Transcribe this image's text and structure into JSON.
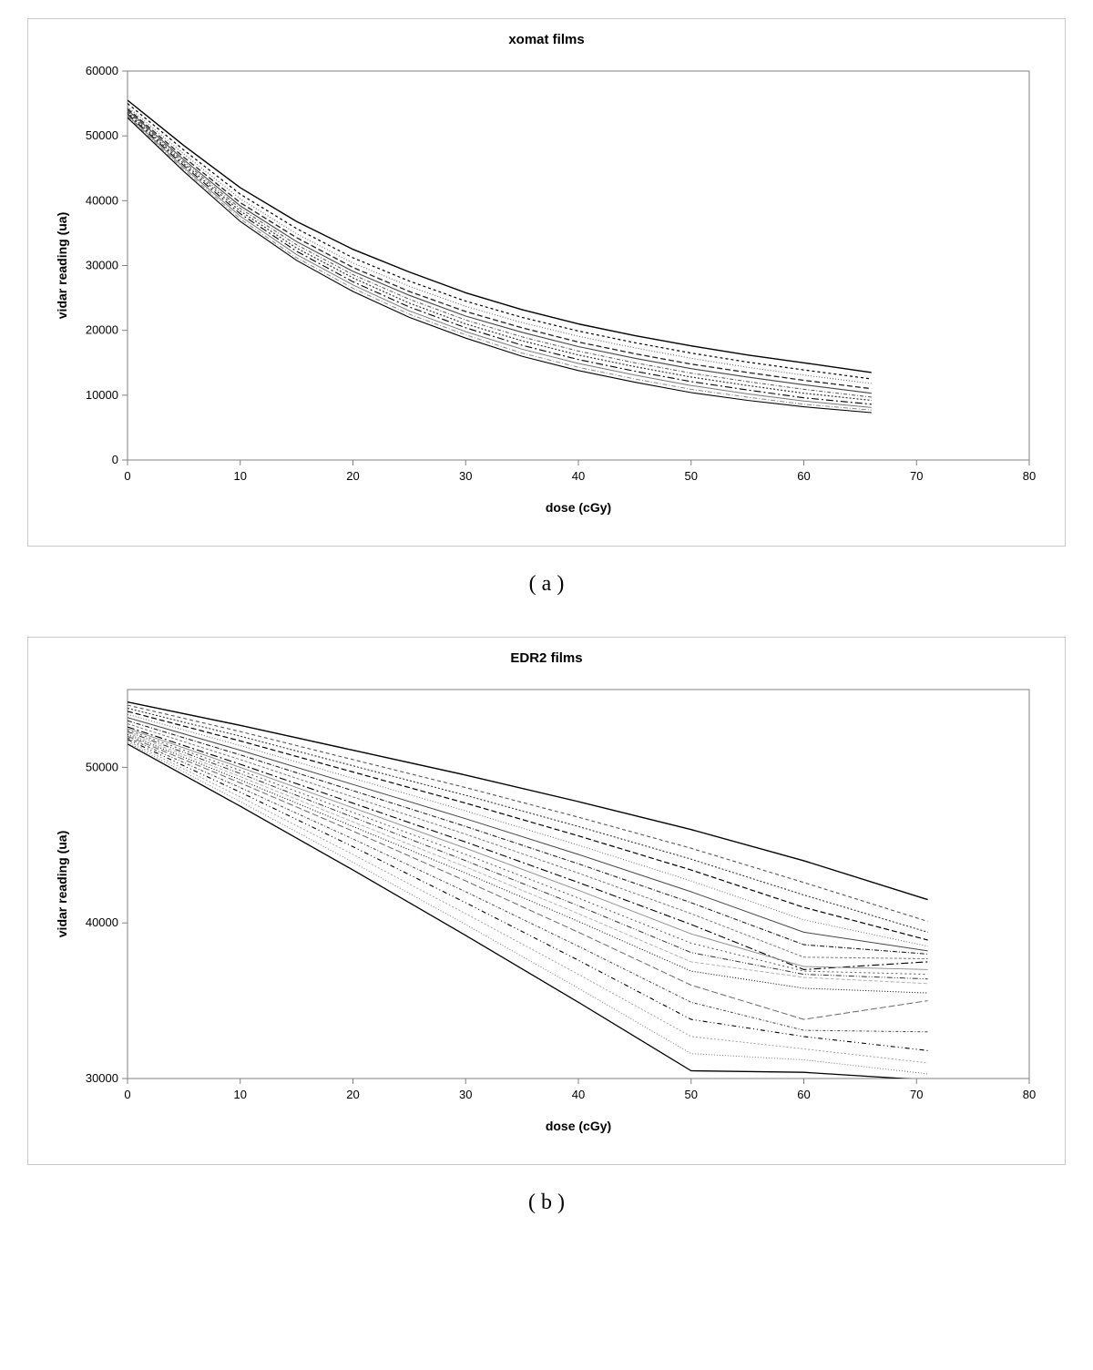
{
  "figure_a": {
    "type": "line",
    "title": "xomat films",
    "xlabel": "dose (cGy)",
    "ylabel": "vidar reading (ua)",
    "title_fontsize": 15,
    "label_fontsize": 14,
    "tick_fontsize": 13,
    "xlim": [
      0,
      80
    ],
    "ylim": [
      0,
      60000
    ],
    "xticks": [
      0,
      10,
      20,
      30,
      40,
      50,
      60,
      70,
      80
    ],
    "yticks": [
      0,
      10000,
      20000,
      30000,
      40000,
      50000,
      60000
    ],
    "background_color": "#ffffff",
    "border_color": "#808080",
    "card_border_color": "#c8c8c8",
    "x_data": [
      0,
      5,
      10,
      15,
      20,
      25,
      30,
      35,
      40,
      45,
      50,
      55,
      60,
      66
    ],
    "series": [
      {
        "color": "#000000",
        "dash": "none",
        "width": 1.4,
        "y": [
          55500,
          48500,
          42000,
          36800,
          32500,
          29000,
          25800,
          23200,
          21000,
          19200,
          17600,
          16200,
          15000,
          13500
        ]
      },
      {
        "color": "#000000",
        "dash": "3,3",
        "width": 1.2,
        "y": [
          55000,
          47800,
          41000,
          35700,
          31200,
          27600,
          24500,
          22000,
          19900,
          18100,
          16500,
          15100,
          13900,
          12500
        ]
      },
      {
        "color": "#666666",
        "dash": "1,2",
        "width": 1.1,
        "y": [
          54500,
          47200,
          40300,
          34900,
          30400,
          26800,
          23700,
          21200,
          19100,
          17300,
          15700,
          14300,
          13100,
          11800
        ]
      },
      {
        "color": "#222222",
        "dash": "6,3",
        "width": 1.3,
        "y": [
          54200,
          46700,
          39700,
          34300,
          29700,
          26000,
          22900,
          20400,
          18200,
          16400,
          14800,
          13500,
          12300,
          11000
        ]
      },
      {
        "color": "#444444",
        "dash": "none",
        "width": 1.1,
        "y": [
          54000,
          46300,
          39200,
          33700,
          29100,
          25400,
          22200,
          19700,
          17500,
          15700,
          14100,
          12800,
          11600,
          10300
        ]
      },
      {
        "color": "#555555",
        "dash": "4,2,1,2",
        "width": 1.0,
        "y": [
          53800,
          46000,
          38800,
          33200,
          28600,
          24800,
          21600,
          19000,
          16800,
          15000,
          13400,
          12100,
          10900,
          9700
        ]
      },
      {
        "color": "#333333",
        "dash": "2,2",
        "width": 1.2,
        "y": [
          53600,
          45700,
          38400,
          32700,
          28100,
          24200,
          21000,
          18400,
          16200,
          14400,
          12800,
          11500,
          10300,
          9200
        ]
      },
      {
        "color": "#000000",
        "dash": "8,3,2,3",
        "width": 1.1,
        "y": [
          53400,
          45400,
          38000,
          32200,
          27500,
          23600,
          20400,
          17700,
          15500,
          13700,
          12100,
          10800,
          9600,
          8600
        ]
      },
      {
        "color": "#777777",
        "dash": "none",
        "width": 1.0,
        "y": [
          53200,
          45100,
          37600,
          31700,
          27000,
          23000,
          19800,
          17100,
          14900,
          13100,
          11500,
          10200,
          9100,
          8100
        ]
      },
      {
        "color": "#888888",
        "dash": "5,2,1,2",
        "width": 1.0,
        "y": [
          53000,
          44800,
          37200,
          31200,
          26500,
          22500,
          19300,
          16500,
          14300,
          12500,
          10900,
          9700,
          8600,
          7700
        ]
      },
      {
        "color": "#000000",
        "dash": "none",
        "width": 1.1,
        "y": [
          52800,
          44500,
          36800,
          30800,
          26000,
          22000,
          18800,
          16000,
          13800,
          12000,
          10400,
          9200,
          8200,
          7300
        ]
      }
    ],
    "caption": "( a )"
  },
  "figure_b": {
    "type": "line",
    "title": "EDR2 films",
    "xlabel": "dose (cGy)",
    "ylabel": "vidar reading (ua)",
    "title_fontsize": 15,
    "label_fontsize": 14,
    "tick_fontsize": 13,
    "xlim": [
      0,
      80
    ],
    "ylim": [
      30000,
      55000
    ],
    "xticks": [
      0,
      10,
      20,
      30,
      40,
      50,
      60,
      70,
      80
    ],
    "yticks": [
      30000,
      40000,
      50000
    ],
    "background_color": "#ffffff",
    "border_color": "#808080",
    "card_border_color": "#c8c8c8",
    "x_data": [
      0,
      10,
      20,
      30,
      40,
      50,
      60,
      71
    ],
    "series": [
      {
        "color": "#000000",
        "dash": "none",
        "width": 1.4,
        "y": [
          54200,
          52700,
          51100,
          49500,
          47800,
          46000,
          44000,
          41500
        ]
      },
      {
        "color": "#555555",
        "dash": "4,3",
        "width": 1.1,
        "y": [
          54000,
          52300,
          50500,
          48700,
          46800,
          44800,
          42600,
          40100
        ]
      },
      {
        "color": "#333333",
        "dash": "2,2",
        "width": 1.1,
        "y": [
          53800,
          52000,
          50100,
          48200,
          46200,
          44100,
          41800,
          39400
        ]
      },
      {
        "color": "#000000",
        "dash": "6,3",
        "width": 1.2,
        "y": [
          53600,
          51700,
          49700,
          47700,
          45600,
          43400,
          41000,
          38900
        ]
      },
      {
        "color": "#666666",
        "dash": "1,2",
        "width": 1.0,
        "y": [
          53400,
          51400,
          49300,
          47200,
          45000,
          42700,
          40200,
          38500
        ]
      },
      {
        "color": "#444444",
        "dash": "none",
        "width": 1.0,
        "y": [
          53200,
          51100,
          48900,
          46700,
          44400,
          42000,
          39400,
          38200
        ]
      },
      {
        "color": "#222222",
        "dash": "5,2,1,2",
        "width": 1.1,
        "y": [
          53000,
          50800,
          48500,
          46200,
          43800,
          41300,
          38600,
          38000
        ]
      },
      {
        "color": "#777777",
        "dash": "3,2",
        "width": 1.0,
        "y": [
          52800,
          50500,
          48100,
          45700,
          43200,
          40600,
          37800,
          37700
        ]
      },
      {
        "color": "#000000",
        "dash": "8,3,2,3",
        "width": 1.1,
        "y": [
          52600,
          50200,
          47700,
          45200,
          42600,
          39900,
          37000,
          37500
        ]
      },
      {
        "color": "#888888",
        "dash": "none",
        "width": 0.9,
        "y": [
          52500,
          50000,
          47400,
          44800,
          42100,
          39300,
          37200,
          37000
        ]
      },
      {
        "color": "#555555",
        "dash": "2,3",
        "width": 1.0,
        "y": [
          52400,
          49800,
          47100,
          44400,
          41600,
          38700,
          36900,
          36700
        ]
      },
      {
        "color": "#333333",
        "dash": "6,2,1,2,1,2",
        "width": 1.0,
        "y": [
          52300,
          49600,
          46800,
          44000,
          41100,
          38100,
          36700,
          36400
        ]
      },
      {
        "color": "#aaaaaa",
        "dash": "4,2",
        "width": 0.9,
        "y": [
          52200,
          49400,
          46500,
          43600,
          40600,
          37500,
          36500,
          36100
        ]
      },
      {
        "color": "#000000",
        "dash": "1,2",
        "width": 1.0,
        "y": [
          52100,
          49200,
          46200,
          43200,
          40100,
          36900,
          35800,
          35500
        ]
      },
      {
        "color": "#666666",
        "dash": "7,3",
        "width": 1.0,
        "y": [
          52000,
          49000,
          45900,
          42700,
          39400,
          36000,
          33800,
          35000
        ]
      },
      {
        "color": "#444444",
        "dash": "3,2,1,2",
        "width": 1.0,
        "y": [
          51900,
          48700,
          45400,
          42000,
          38500,
          34900,
          33100,
          33000
        ]
      },
      {
        "color": "#000000",
        "dash": "5,3,1,3,1,3",
        "width": 1.1,
        "y": [
          51800,
          48400,
          44900,
          41300,
          37600,
          33800,
          32700,
          31800
        ]
      },
      {
        "color": "#999999",
        "dash": "2,2",
        "width": 0.9,
        "y": [
          51700,
          48100,
          44400,
          40600,
          36700,
          32700,
          31900,
          31000
        ]
      },
      {
        "color": "#777777",
        "dash": "1,2",
        "width": 1.0,
        "y": [
          51600,
          47800,
          43900,
          39900,
          35800,
          31600,
          31200,
          30300
        ]
      },
      {
        "color": "#000000",
        "dash": "none",
        "width": 1.3,
        "y": [
          51500,
          47500,
          43400,
          39200,
          34900,
          30500,
          30400,
          29900
        ]
      }
    ],
    "caption": "( b )"
  }
}
